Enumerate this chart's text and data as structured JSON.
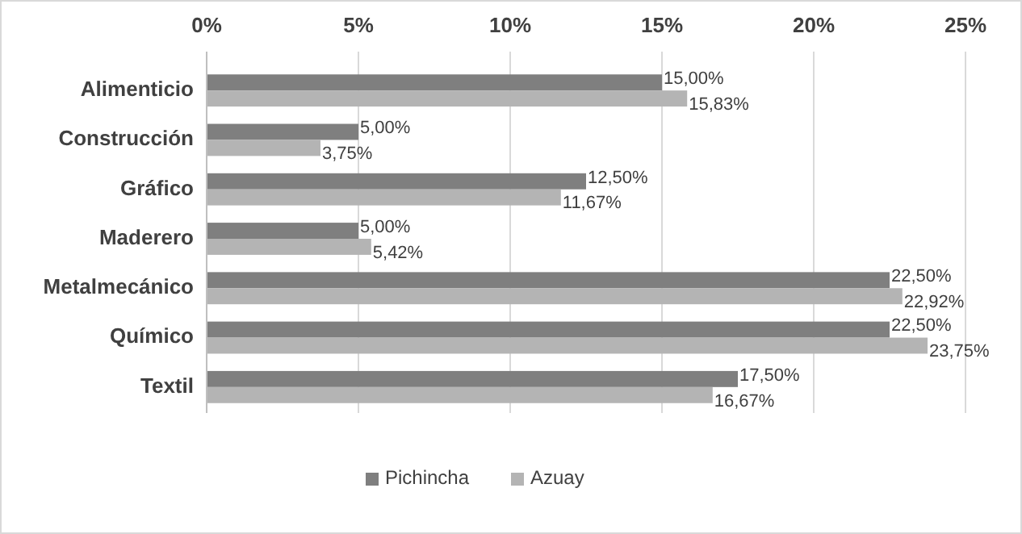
{
  "chart_data": {
    "type": "bar",
    "orientation": "horizontal",
    "categories": [
      "Alimenticio",
      "Construcción",
      "Gráfico",
      "Maderero",
      "Metalmecánico",
      "Químico",
      "Textil"
    ],
    "series": [
      {
        "name": "Pichincha",
        "color": "#7f7f7f",
        "values": [
          15,
          5,
          12.5,
          5,
          22.5,
          22.5,
          17.5
        ],
        "value_labels": [
          "15,00%",
          "5,00%",
          "12,50%",
          "5,00%",
          "22,50%",
          "22,50%",
          "17,50%"
        ]
      },
      {
        "name": "Azuay",
        "color": "#b4b4b4",
        "values": [
          15.83,
          3.75,
          11.67,
          5.42,
          22.92,
          23.75,
          16.67
        ],
        "value_labels": [
          "15,83%",
          "3,75%",
          "11,67%",
          "5,42%",
          "22,92%",
          "23,75%",
          "16,67%"
        ]
      }
    ],
    "xlim": [
      0,
      25
    ],
    "xticks": [
      {
        "value": 0,
        "label": "0%"
      },
      {
        "value": 5,
        "label": "5%"
      },
      {
        "value": 10,
        "label": "10%"
      },
      {
        "value": 15,
        "label": "15%"
      },
      {
        "value": 20,
        "label": "20%"
      },
      {
        "value": 25,
        "label": "25%"
      }
    ],
    "grid": "x",
    "legend": "bottom"
  }
}
